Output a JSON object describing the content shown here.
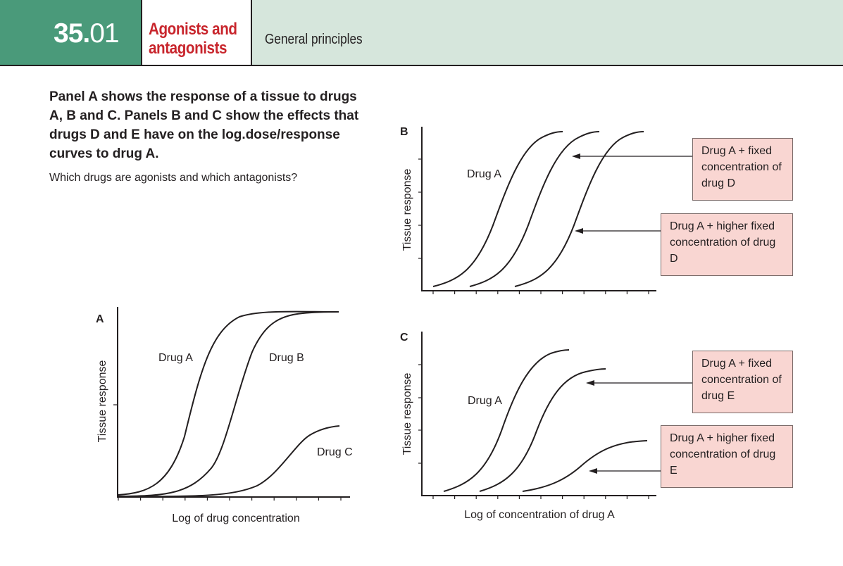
{
  "header": {
    "number_bold": "35.",
    "number_light": "01",
    "title_line1": "Agonists and",
    "title_line2": "antagonists",
    "subtitle": "General principles",
    "colors": {
      "number_bg": "#4a9a7a",
      "title": "#c8252c",
      "subtitle_bg": "#d6e6dc"
    }
  },
  "question": {
    "main": "Panel A shows the response of a tissue to drugs A, B and C. Panels B and C show the effects that drugs D and E have on the log.dose/response curves to drug A.",
    "sub": "Which drugs are agonists and which antagonists?"
  },
  "panel_a": {
    "letter": "A",
    "ylabel": "Tissue response",
    "xlabel": "Log of drug concentration",
    "curves": [
      {
        "label": "Drug A",
        "relative_max": 1.0,
        "mid": 0.35
      },
      {
        "label": "Drug B",
        "relative_max": 1.0,
        "mid": 0.58
      },
      {
        "label": "Drug C",
        "relative_max": 0.38,
        "mid": 0.8
      }
    ]
  },
  "panel_b": {
    "letter": "B",
    "ylabel": "Tissue response",
    "curve_label": "Drug A",
    "box1": "Drug A + fixed concentration of drug D",
    "box2": "Drug A + higher fixed concentration of drug D"
  },
  "panel_c": {
    "letter": "C",
    "ylabel": "Tissue response",
    "xlabel": "Log of concentration of drug A",
    "curve_label": "Drug A",
    "box1": "Drug A + fixed concentration of drug E",
    "box2": "Drug A + higher fixed concentration of drug E"
  }
}
